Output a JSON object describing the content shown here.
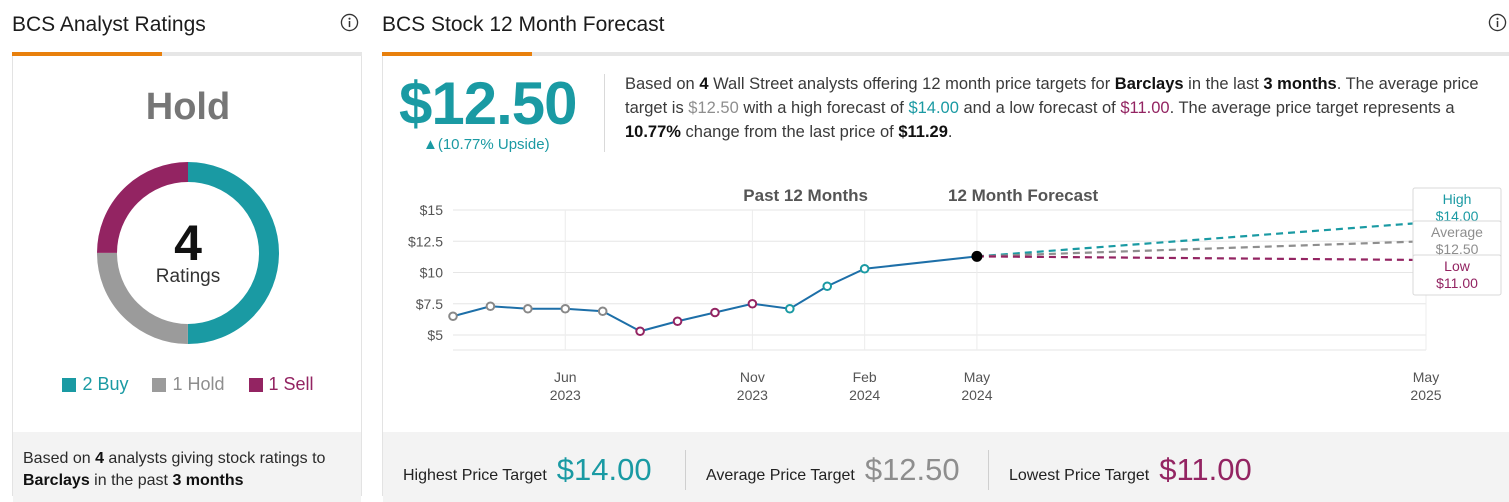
{
  "colors": {
    "teal": "#1a9aa3",
    "gray": "#8e8e8e",
    "purple": "#932462",
    "accent_orange": "#e8800d",
    "history_line": "#1d6fa8"
  },
  "ratings_panel": {
    "title": "BCS Analyst Ratings",
    "consensus": "Hold",
    "total": "4",
    "total_label": "Ratings",
    "breakdown": [
      {
        "label": "2 Buy",
        "count": 2,
        "color": "#1a9aa3"
      },
      {
        "label": "1 Hold",
        "count": 1,
        "color": "#9b9b9b"
      },
      {
        "label": "1 Sell",
        "count": 1,
        "color": "#932462"
      }
    ],
    "footer": {
      "part1": "Based on ",
      "count": "4",
      "part2": " analysts giving stock ratings to ",
      "company": "Barclays",
      "part3": " in the past ",
      "period": "3 months"
    }
  },
  "forecast_panel": {
    "title": "BCS Stock 12 Month Forecast",
    "price": "$12.50",
    "upside": "▲(10.77% Upside)",
    "summary": {
      "s1": "Based on ",
      "count": "4",
      "s2": " Wall Street analysts offering 12 month price targets for ",
      "company": "Barclays",
      "s3": " in the last ",
      "period": "3 months",
      "s4": ". The average price target is ",
      "avg": "$12.50",
      "s5": " with a high forecast of ",
      "high": "$14.00",
      "s6": " and a low forecast of ",
      "low": "$11.00",
      "s7": ". The average price target represents a ",
      "pct": "10.77%",
      "s8": " change from the last price of ",
      "last": "$11.29",
      "s9": "."
    },
    "bottom": {
      "high_label": "Highest Price Target",
      "high_value": "$14.00",
      "avg_label": "Average Price Target",
      "avg_value": "$12.50",
      "low_label": "Lowest Price Target",
      "low_value": "$11.00"
    }
  },
  "chart_data": {
    "type": "line",
    "header_left": "Past 12 Months",
    "header_right": "12 Month Forecast",
    "y_ticks": [
      "$15",
      "$12.5",
      "$10",
      "$7.5",
      "$5"
    ],
    "y_tick_values": [
      15,
      12.5,
      10,
      7.5,
      5
    ],
    "ylim": [
      5,
      15
    ],
    "x_ticks": [
      {
        "month": "Jun",
        "year": "2023",
        "t": 3
      },
      {
        "month": "Nov",
        "year": "2023",
        "t": 8
      },
      {
        "month": "Feb",
        "year": "2024",
        "t": 11
      },
      {
        "month": "May",
        "year": "2024",
        "t": 14
      },
      {
        "month": "May",
        "year": "2025",
        "t": 26
      }
    ],
    "history": {
      "t": [
        0,
        1,
        2,
        3,
        4,
        5,
        6,
        7,
        8,
        9,
        10,
        11,
        12,
        13,
        14
      ],
      "values": [
        6.5,
        7.3,
        7.1,
        7.1,
        6.9,
        5.3,
        6.1,
        6.8,
        7.5,
        7.1,
        8.9,
        10.3,
        null,
        null,
        11.29
      ],
      "marker_colors": [
        "#888888",
        "#888888",
        "#888888",
        "#888888",
        "#888888",
        "#932462",
        "#932462",
        "#932462",
        "#932462",
        "#1a9aa3",
        "#1a9aa3",
        "#1a9aa3",
        null,
        null,
        "#000000"
      ]
    },
    "forecast": [
      {
        "name": "High",
        "value": 14.0,
        "label": "$14.00",
        "color": "#1a9aa3"
      },
      {
        "name": "Average",
        "value": 12.5,
        "label": "$12.50",
        "color": "#8e8e8e"
      },
      {
        "name": "Low",
        "value": 11.0,
        "label": "$11.00",
        "color": "#932462"
      }
    ]
  }
}
